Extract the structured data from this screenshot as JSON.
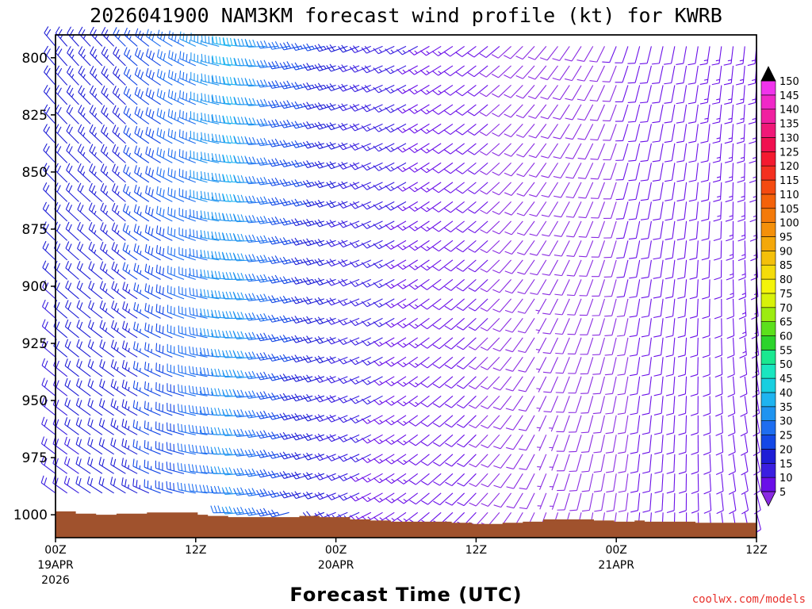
{
  "chart_data": {
    "type": "wind-barb-time-height",
    "title": "2026041900 NAM3KM forecast wind profile (kt) for KWRB",
    "xlabel": "Forecast Time (UTC)",
    "ylabel": "",
    "credit": "coolwx.com/models",
    "y_ticks": [
      "800",
      "825",
      "850",
      "875",
      "900",
      "925",
      "950",
      "975",
      "1000"
    ],
    "y_range_hpa": [
      1010,
      790
    ],
    "x_range_hours": [
      0,
      60
    ],
    "x_ticks": [
      {
        "hour": 0,
        "line1": "00Z",
        "line2": "19APR",
        "line3": "2026"
      },
      {
        "hour": 12,
        "line1": "12Z",
        "line2": "",
        "line3": ""
      },
      {
        "hour": 24,
        "line1": "00Z",
        "line2": "20APR",
        "line3": ""
      },
      {
        "hour": 36,
        "line1": "12Z",
        "line2": "",
        "line3": ""
      },
      {
        "hour": 48,
        "line1": "00Z",
        "line2": "21APR",
        "line3": ""
      },
      {
        "hour": 60,
        "line1": "12Z",
        "line2": "",
        "line3": ""
      }
    ],
    "colorbar": {
      "levels": [
        5,
        10,
        15,
        20,
        25,
        30,
        35,
        40,
        45,
        50,
        55,
        60,
        65,
        70,
        75,
        80,
        85,
        90,
        95,
        100,
        105,
        110,
        115,
        120,
        125,
        130,
        135,
        140,
        145,
        150
      ],
      "colors": [
        "#8a2be2",
        "#6a0fe8",
        "#3a1fe0",
        "#1e1ed6",
        "#1448e6",
        "#1e6ef0",
        "#1f94f0",
        "#1fb4f0",
        "#18cfe0",
        "#1ae6c0",
        "#1ae890",
        "#2cd42c",
        "#5ce01c",
        "#9cec10",
        "#d8f20a",
        "#f4f40a",
        "#f4dc0a",
        "#f4c00a",
        "#f4a80a",
        "#f4900a",
        "#f47a0a",
        "#f4620a",
        "#f44a10",
        "#f43020",
        "#f41a30",
        "#f01050",
        "#f01878",
        "#f020a0",
        "#f028c8",
        "#f034ec"
      ]
    },
    "surface_pressure_hpa": [
      998.5,
      998.5,
      999.5,
      999.5,
      1000,
      1000,
      999.5,
      999.5,
      999.5,
      999,
      999,
      999,
      999,
      999,
      1000,
      1000.5,
      1000.5,
      1001,
      1001,
      1001,
      1001,
      1001,
      1001,
      1001,
      1000.5,
      1000.5,
      1001,
      1001,
      1001,
      1002,
      1002,
      1002.5,
      1002.5,
      1003,
      1003,
      1003,
      1003,
      1003,
      1003,
      1003.5,
      1003.5,
      1004,
      1004,
      1004,
      1003.5,
      1003.5,
      1003,
      1003,
      1002,
      1002,
      1002,
      1002,
      1002,
      1002.5,
      1002.5,
      1003,
      1003,
      1002.5,
      1003,
      1003,
      1003,
      1003,
      1003,
      1003.5,
      1003.5,
      1003.5,
      1003.5,
      1003.5,
      1003.5
    ],
    "wind_direction_model": {
      "description": "Wind direction (deg) by forecast hour, interpolated linearly",
      "hours": [
        0,
        6,
        12,
        16,
        20,
        26,
        32,
        38,
        42,
        46,
        50,
        54,
        60
      ],
      "dir_lower": [
        305,
        300,
        280,
        265,
        255,
        245,
        230,
        220,
        200,
        190,
        185,
        180,
        165
      ],
      "dir_upper": [
        320,
        315,
        295,
        275,
        260,
        250,
        240,
        230,
        220,
        210,
        195,
        190,
        185
      ],
      "spd_lower": [
        18,
        22,
        30,
        36,
        25,
        15,
        12,
        9,
        7,
        8,
        10,
        11,
        12
      ],
      "spd_upper": [
        22,
        25,
        35,
        42,
        30,
        20,
        14,
        10,
        8,
        9,
        11,
        12,
        14
      ]
    }
  }
}
